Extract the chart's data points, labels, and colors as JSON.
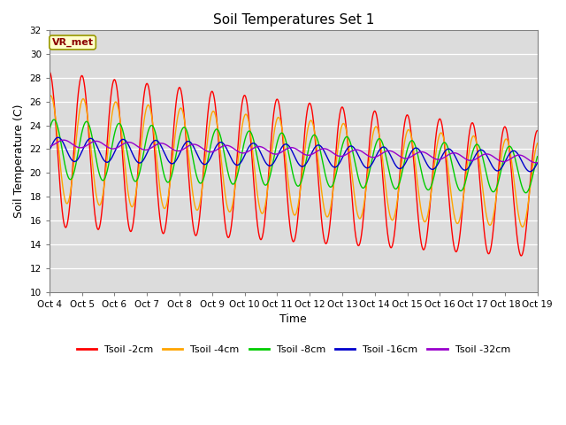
{
  "title": "Soil Temperatures Set 1",
  "xlabel": "Time",
  "ylabel": "Soil Temperature (C)",
  "ylim": [
    10,
    32
  ],
  "yticks": [
    10,
    12,
    14,
    16,
    18,
    20,
    22,
    24,
    26,
    28,
    30,
    32
  ],
  "xtick_labels": [
    "Oct 4",
    "Oct 5",
    "Oct 6",
    "Oct 7",
    "Oct 8",
    "Oct 9",
    "Oct 10",
    "Oct 11",
    "Oct 12",
    "Oct 13",
    "Oct 14",
    "Oct 15",
    "Oct 16",
    "Oct 17",
    "Oct 18",
    "Oct 19"
  ],
  "vr_met_label": "VR_met",
  "background_color": "#dcdcdc",
  "series": [
    {
      "label": "Tsoil -2cm",
      "color": "#ff0000"
    },
    {
      "label": "Tsoil -4cm",
      "color": "#ffa500"
    },
    {
      "label": "Tsoil -8cm",
      "color": "#00cc00"
    },
    {
      "label": "Tsoil -16cm",
      "color": "#0000cc"
    },
    {
      "label": "Tsoil -32cm",
      "color": "#9900cc"
    }
  ],
  "n_points": 2160,
  "duration_days": 15
}
